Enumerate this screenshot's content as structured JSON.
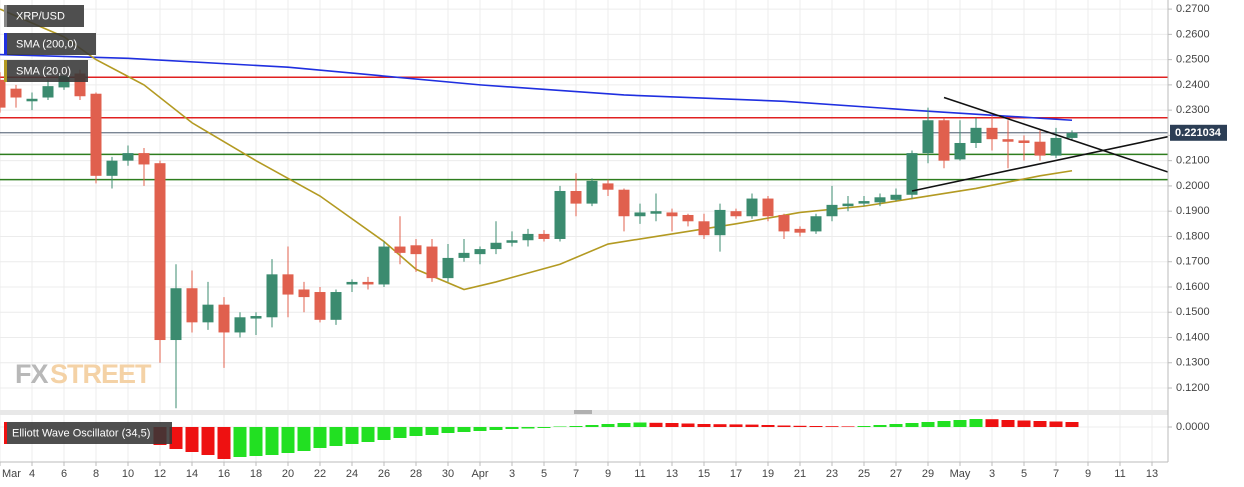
{
  "chart_data": [
    {
      "type": "candlestick",
      "watermark": [
        "FX",
        "STREET"
      ],
      "x": [
        "03-02",
        "03-03",
        "03-04",
        "03-05",
        "03-06",
        "03-07",
        "03-08",
        "03-09",
        "03-10",
        "03-11",
        "03-12",
        "03-13",
        "03-14",
        "03-15",
        "03-16",
        "03-17",
        "03-18",
        "03-19",
        "03-20",
        "03-21",
        "03-22",
        "03-23",
        "03-24",
        "03-25",
        "03-26",
        "03-27",
        "03-28",
        "03-29",
        "03-30",
        "03-31",
        "04-01",
        "04-02",
        "04-03",
        "04-04",
        "04-05",
        "04-06",
        "04-07",
        "04-08",
        "04-09",
        "04-10",
        "04-11",
        "04-12",
        "04-13",
        "04-14",
        "04-15",
        "04-16",
        "04-17",
        "04-18",
        "04-19",
        "04-20",
        "04-21",
        "04-22",
        "04-23",
        "04-24",
        "04-25",
        "04-26",
        "04-27",
        "04-28",
        "04-29",
        "04-30",
        "05-01",
        "05-02",
        "05-03",
        "05-04",
        "05-05",
        "05-06",
        "05-07",
        "05-08"
      ],
      "series": [
        {
          "name": "XRP/USD",
          "up_color": "#3b8b6f",
          "down_color": "#e0604e",
          "open": [
            0.242,
            0.2385,
            0.2335,
            0.235,
            0.239,
            0.2445,
            0.2365,
            0.204,
            0.21,
            0.213,
            0.209,
            0.139,
            0.1595,
            0.146,
            0.153,
            0.142,
            0.1475,
            0.148,
            0.165,
            0.159,
            0.158,
            0.147,
            0.161,
            0.162,
            0.161,
            0.176,
            0.1765,
            0.176,
            0.1635,
            0.1715,
            0.173,
            0.175,
            0.1775,
            0.1785,
            0.181,
            0.179,
            0.198,
            0.193,
            0.201,
            0.1985,
            0.188,
            0.189,
            0.1895,
            0.1885,
            0.186,
            0.1805,
            0.19,
            0.188,
            0.195,
            0.1885,
            0.183,
            0.182,
            0.188,
            0.192,
            0.193,
            0.1935,
            0.1945,
            0.1965,
            0.213,
            0.226,
            0.2105,
            0.217,
            0.223,
            0.2185,
            0.218,
            0.2175,
            0.212,
            0.219
          ],
          "high": [
            0.245,
            0.24,
            0.237,
            0.242,
            0.245,
            0.246,
            0.237,
            0.2115,
            0.216,
            0.215,
            0.21,
            0.169,
            0.1665,
            0.162,
            0.156,
            0.15,
            0.15,
            0.171,
            0.176,
            0.162,
            0.16,
            0.159,
            0.163,
            0.164,
            0.178,
            0.188,
            0.179,
            0.179,
            0.177,
            0.179,
            0.176,
            0.186,
            0.182,
            0.183,
            0.1825,
            0.2,
            0.205,
            0.203,
            0.2025,
            0.199,
            0.193,
            0.197,
            0.191,
            0.189,
            0.189,
            0.193,
            0.191,
            0.197,
            0.196,
            0.189,
            0.184,
            0.189,
            0.2,
            0.196,
            0.196,
            0.197,
            0.199,
            0.214,
            0.231,
            0.227,
            0.226,
            0.227,
            0.228,
            0.226,
            0.22,
            0.222,
            0.223,
            0.222
          ],
          "low": [
            0.229,
            0.231,
            0.23,
            0.234,
            0.238,
            0.234,
            0.201,
            0.199,
            0.208,
            0.2,
            0.13,
            0.112,
            0.142,
            0.143,
            0.128,
            0.14,
            0.141,
            0.144,
            0.148,
            0.15,
            0.146,
            0.145,
            0.158,
            0.159,
            0.16,
            0.169,
            0.166,
            0.162,
            0.162,
            0.17,
            0.169,
            0.173,
            0.176,
            0.176,
            0.178,
            0.178,
            0.188,
            0.192,
            0.196,
            0.182,
            0.185,
            0.186,
            0.182,
            0.184,
            0.179,
            0.174,
            0.187,
            0.187,
            0.186,
            0.179,
            0.18,
            0.181,
            0.186,
            0.19,
            0.192,
            0.192,
            0.194,
            0.195,
            0.209,
            0.207,
            0.21,
            0.215,
            0.214,
            0.207,
            0.21,
            0.21,
            0.211,
            0.218
          ],
          "close": [
            0.231,
            0.235,
            0.2345,
            0.2395,
            0.2435,
            0.2355,
            0.204,
            0.21,
            0.213,
            0.2085,
            0.139,
            0.1595,
            0.146,
            0.153,
            0.142,
            0.148,
            0.1485,
            0.165,
            0.157,
            0.156,
            0.147,
            0.158,
            0.162,
            0.161,
            0.176,
            0.1735,
            0.173,
            0.1635,
            0.1715,
            0.1735,
            0.175,
            0.1775,
            0.1785,
            0.181,
            0.179,
            0.198,
            0.193,
            0.202,
            0.1985,
            0.188,
            0.1895,
            0.19,
            0.188,
            0.186,
            0.1805,
            0.1905,
            0.188,
            0.195,
            0.188,
            0.182,
            0.1815,
            0.188,
            0.1925,
            0.193,
            0.194,
            0.1955,
            0.1965,
            0.213,
            0.226,
            0.21,
            0.217,
            0.223,
            0.2185,
            0.2175,
            0.217,
            0.212,
            0.219,
            0.221
          ]
        }
      ],
      "overlays": [
        {
          "name": "SMA (200,0)",
          "color": "#1f2fe0",
          "x": [
            "03-02",
            "03-10",
            "03-20",
            "04-01",
            "04-10",
            "04-20",
            "04-28",
            "05-08"
          ],
          "values": [
            0.252,
            0.2505,
            0.247,
            0.24,
            0.236,
            0.2335,
            0.23,
            0.226
          ]
        },
        {
          "name": "SMA (20,0)",
          "color": "#b39a22",
          "x": [
            "03-02",
            "03-06",
            "03-08",
            "03-11",
            "03-14",
            "03-18",
            "03-22",
            "03-26",
            "03-28",
            "03-31",
            "04-02",
            "04-06",
            "04-09",
            "04-13",
            "04-17",
            "04-21",
            "04-25",
            "04-28",
            "05-02",
            "05-06",
            "05-08"
          ],
          "values": [
            0.27,
            0.259,
            0.25,
            0.24,
            0.225,
            0.21,
            0.196,
            0.178,
            0.167,
            0.159,
            0.162,
            0.169,
            0.177,
            0.181,
            0.185,
            0.1895,
            0.192,
            0.195,
            0.199,
            0.204,
            0.206
          ]
        }
      ],
      "hlines": [
        {
          "value": 0.243,
          "color": "#e02020"
        },
        {
          "value": 0.227,
          "color": "#e02020"
        },
        {
          "value": 0.2125,
          "color": "#2e7d1e"
        },
        {
          "value": 0.2025,
          "color": "#2e7d1e"
        }
      ],
      "trendlines": [
        {
          "color": "#111111",
          "x": [
            "04-30",
            "05-14"
          ],
          "values": [
            0.235,
            0.2055
          ]
        },
        {
          "color": "#111111",
          "x": [
            "04-28",
            "05-14"
          ],
          "values": [
            0.198,
            0.2195
          ]
        }
      ],
      "last_price": 0.221034,
      "xlim": [
        "03-02",
        "05-14"
      ],
      "xticks": [
        {
          "value": "03-02",
          "label": "Mar"
        },
        {
          "value": "03-04",
          "label": "4"
        },
        {
          "value": "03-06",
          "label": "6"
        },
        {
          "value": "03-08",
          "label": "8"
        },
        {
          "value": "03-10",
          "label": "10"
        },
        {
          "value": "03-12",
          "label": "12"
        },
        {
          "value": "03-14",
          "label": "14"
        },
        {
          "value": "03-16",
          "label": "16"
        },
        {
          "value": "03-18",
          "label": "18"
        },
        {
          "value": "03-20",
          "label": "20"
        },
        {
          "value": "03-22",
          "label": "22"
        },
        {
          "value": "03-24",
          "label": "24"
        },
        {
          "value": "03-26",
          "label": "26"
        },
        {
          "value": "03-28",
          "label": "28"
        },
        {
          "value": "03-30",
          "label": "30"
        },
        {
          "value": "04-01",
          "label": "Apr"
        },
        {
          "value": "04-03",
          "label": "3"
        },
        {
          "value": "04-05",
          "label": "5"
        },
        {
          "value": "04-07",
          "label": "7"
        },
        {
          "value": "04-09",
          "label": "9"
        },
        {
          "value": "04-11",
          "label": "11"
        },
        {
          "value": "04-13",
          "label": "13"
        },
        {
          "value": "04-15",
          "label": "15"
        },
        {
          "value": "04-17",
          "label": "17"
        },
        {
          "value": "04-19",
          "label": "19"
        },
        {
          "value": "04-21",
          "label": "21"
        },
        {
          "value": "04-23",
          "label": "23"
        },
        {
          "value": "04-25",
          "label": "25"
        },
        {
          "value": "04-27",
          "label": "27"
        },
        {
          "value": "04-29",
          "label": "29"
        },
        {
          "value": "05-01",
          "label": "May"
        },
        {
          "value": "05-03",
          "label": "3"
        },
        {
          "value": "05-05",
          "label": "5"
        },
        {
          "value": "05-07",
          "label": "7"
        },
        {
          "value": "05-09",
          "label": "9"
        },
        {
          "value": "05-11",
          "label": "11"
        },
        {
          "value": "05-13",
          "label": "13"
        }
      ],
      "ylim": [
        0.1113,
        0.2736
      ],
      "yticks": [
        {
          "value": 0.12,
          "label": "0.1200"
        },
        {
          "value": 0.13,
          "label": "0.1300"
        },
        {
          "value": 0.14,
          "label": "0.1400"
        },
        {
          "value": 0.15,
          "label": "0.1500"
        },
        {
          "value": 0.16,
          "label": "0.1600"
        },
        {
          "value": 0.17,
          "label": "0.1700"
        },
        {
          "value": 0.18,
          "label": "0.1800"
        },
        {
          "value": 0.19,
          "label": "0.1900"
        },
        {
          "value": 0.2,
          "label": "0.2000"
        },
        {
          "value": 0.21,
          "label": "0.2100"
        },
        {
          "value": 0.22,
          "label": "0.2200"
        },
        {
          "value": 0.23,
          "label": "0.2300"
        },
        {
          "value": 0.24,
          "label": "0.2400"
        },
        {
          "value": 0.25,
          "label": "0.2500"
        },
        {
          "value": 0.26,
          "label": "0.2600"
        },
        {
          "value": 0.27,
          "label": "0.2700"
        }
      ],
      "grid": true
    },
    {
      "type": "bar",
      "x": [
        "03-12",
        "03-13",
        "03-14",
        "03-15",
        "03-16",
        "03-17",
        "03-18",
        "03-19",
        "03-20",
        "03-21",
        "03-22",
        "03-23",
        "03-24",
        "03-25",
        "03-26",
        "03-27",
        "03-28",
        "03-29",
        "03-30",
        "03-31",
        "04-01",
        "04-02",
        "04-03",
        "04-04",
        "04-05",
        "04-06",
        "04-07",
        "04-08",
        "04-09",
        "04-10",
        "04-11",
        "04-12",
        "04-13",
        "04-14",
        "04-15",
        "04-16",
        "04-17",
        "04-18",
        "04-19",
        "04-20",
        "04-21",
        "04-22",
        "04-23",
        "04-24",
        "04-25",
        "04-26",
        "04-27",
        "04-28",
        "04-29",
        "04-30",
        "05-01",
        "05-02",
        "05-03",
        "05-04",
        "05-05",
        "05-06",
        "05-07",
        "05-08"
      ],
      "series": [
        {
          "name": "Elliott Wave Oscillator (34,5)",
          "up_color": "#22e022",
          "down_color": "#ee1111",
          "values": [
            -0.018,
            -0.022,
            -0.025,
            -0.028,
            -0.032,
            -0.03,
            -0.029,
            -0.028,
            -0.026,
            -0.024,
            -0.021,
            -0.019,
            -0.017,
            -0.015,
            -0.013,
            -0.011,
            -0.009,
            -0.008,
            -0.006,
            -0.005,
            -0.004,
            -0.003,
            -0.002,
            -0.0015,
            -0.001,
            0.0005,
            0.001,
            0.002,
            0.003,
            0.004,
            0.0045,
            0.0042,
            0.004,
            0.0035,
            0.003,
            0.0028,
            0.0026,
            0.0024,
            0.002,
            0.0015,
            0.0012,
            0.001,
            0.0008,
            0.0006,
            0.001,
            0.002,
            0.003,
            0.004,
            0.005,
            0.006,
            0.007,
            0.008,
            0.0078,
            0.007,
            0.0065,
            0.006,
            0.0055,
            0.005
          ]
        }
      ],
      "xlim": [
        "03-02",
        "05-14"
      ],
      "ylim": [
        -0.035,
        0.013
      ],
      "yticks": [
        {
          "value": 0,
          "label": "0.0000"
        }
      ],
      "grid": true
    }
  ]
}
